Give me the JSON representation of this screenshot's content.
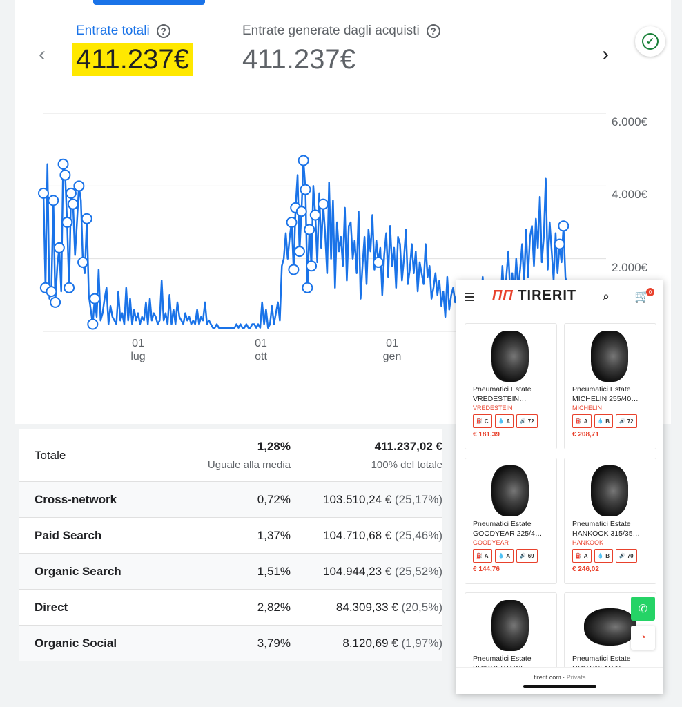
{
  "metrics": {
    "active": {
      "label": "Entrate totali",
      "value": "411.237€"
    },
    "secondary": {
      "label": "Entrate generate dagli acquisti",
      "value": "411.237€"
    }
  },
  "nav": {
    "prev": "‹",
    "next": "›"
  },
  "chart_data": {
    "type": "line",
    "y_ticks": [
      "2.000€",
      "4.000€",
      "6.000€"
    ],
    "x_ticks": [
      {
        "day": "01",
        "month": "lug"
      },
      {
        "day": "01",
        "month": "ott"
      },
      {
        "day": "01",
        "month": "gen"
      }
    ],
    "ylim": [
      0,
      6000
    ],
    "color": "#1a73e8",
    "series": [
      {
        "values": [
          3800,
          1200,
          4600,
          900,
          1100,
          3600,
          800,
          1800,
          2300,
          1100,
          4600,
          4300,
          3000,
          1200,
          3800,
          3500,
          2100,
          3000,
          4000,
          3600,
          1900,
          1600,
          3100,
          1000,
          600,
          200,
          900,
          400,
          1700,
          300,
          500,
          900,
          1200,
          200,
          700,
          400,
          300,
          200,
          1100,
          300,
          500,
          200,
          1200,
          300,
          900,
          200,
          600,
          300,
          500,
          200,
          400,
          300,
          800,
          200,
          900,
          300,
          500,
          400,
          200,
          300,
          1400,
          300,
          500,
          200,
          1000,
          200,
          600,
          200,
          800,
          400,
          300,
          200,
          500,
          300,
          400,
          200,
          300,
          200,
          600,
          200,
          400,
          300,
          800,
          200,
          300,
          200,
          100,
          100,
          200,
          100,
          100,
          100,
          100,
          100,
          100,
          100,
          100,
          100,
          200,
          100,
          200,
          100,
          100,
          200,
          100,
          100,
          200,
          200,
          100,
          200,
          100,
          800,
          200,
          600,
          100,
          200,
          700,
          200,
          500,
          800,
          300,
          1800,
          2000,
          2700,
          2000,
          2600,
          3000,
          1700,
          3400,
          4300,
          2200,
          3300,
          4700,
          3900,
          1200,
          2800,
          1800,
          4000,
          3200,
          1900,
          3800,
          2300,
          3500,
          2700,
          1600,
          4100,
          2000,
          3600,
          1200,
          3000,
          2200,
          2600,
          1800,
          3400,
          1400,
          2900,
          3000,
          2000,
          2500,
          1600,
          3300,
          900,
          1800,
          2600,
          1300,
          2800,
          2200,
          3200,
          1700,
          2500,
          1900,
          2300,
          1000,
          2100,
          2700,
          1500,
          2900,
          1800,
          2300,
          1200,
          2600,
          2400,
          1400,
          2000,
          2800,
          1300,
          1700,
          2400,
          1600,
          2200,
          1100,
          1900,
          1600,
          1300,
          2400,
          1500,
          1800,
          900,
          1200,
          1600,
          1000,
          1400,
          700,
          1100,
          400,
          1500,
          600,
          1000,
          1200,
          800,
          1100,
          900,
          300,
          1200,
          700,
          1000,
          600,
          1300,
          900,
          700,
          1100,
          1200,
          800,
          1500,
          600,
          1000,
          1400,
          700,
          1200,
          900,
          1300,
          1100,
          600,
          1800,
          800,
          1500,
          2200,
          1000,
          1600,
          900,
          2000,
          1200,
          1700,
          2400,
          1300,
          2800,
          1500,
          2600,
          2900,
          1800,
          3100,
          2300,
          3700,
          1900,
          2600,
          4200,
          1700,
          3000,
          2200,
          1400,
          2700,
          1600,
          2400,
          1900,
          2900,
          1500,
          1200
        ]
      }
    ]
  },
  "table": {
    "total": {
      "label": "Totale",
      "rate": "1,28%",
      "rate_sub": "Uguale alla media",
      "revenue": "411.237,02 €",
      "revenue_sub": "100% del totale"
    },
    "rows": [
      {
        "name": "Cross-network",
        "rate": "0,72%",
        "revenue": "103.510,24 €",
        "pct": "(25,17%)"
      },
      {
        "name": "Paid Search",
        "rate": "1,37%",
        "revenue": "104.710,68 €",
        "pct": "(25,46%)"
      },
      {
        "name": "Organic Search",
        "rate": "1,51%",
        "revenue": "104.944,23 €",
        "pct": "(25,52%)"
      },
      {
        "name": "Direct",
        "rate": "2,82%",
        "revenue": "84.309,33 €",
        "pct": "(20,5%)"
      },
      {
        "name": "Organic Social",
        "rate": "3,79%",
        "revenue": "8.120,69 €",
        "pct": "(1,97%)"
      }
    ]
  },
  "phone": {
    "logo_mark": "ПП",
    "logo_text": "TIRERIT",
    "cart_count": "0",
    "products": [
      {
        "title": "Pneumatici Estate VREDESTEIN…",
        "brand": "VREDESTEIN",
        "fuel": "C",
        "wet": "A",
        "noise": "72",
        "price": "€ 181,39"
      },
      {
        "title": "Pneumatici Estate MICHELIN 255/40…",
        "brand": "MICHELIN",
        "fuel": "A",
        "wet": "B",
        "noise": "72",
        "price": "€ 208,71"
      },
      {
        "title": "Pneumatici Estate GOODYEAR 225/4…",
        "brand": "GOODYEAR",
        "fuel": "A",
        "wet": "A",
        "noise": "69",
        "price": "€ 144,76"
      },
      {
        "title": "Pneumatici Estate HANKOOK 315/35…",
        "brand": "HANKOOK",
        "fuel": "A",
        "wet": "B",
        "noise": "70",
        "price": "€ 246,02"
      },
      {
        "title": "Pneumatici Estate BRIDGESTONE",
        "brand": "",
        "fuel": "",
        "wet": "",
        "noise": "",
        "price": ""
      },
      {
        "title": "Pneumatici Estate CONTINENTAL",
        "brand": "",
        "fuel": "",
        "wet": "",
        "noise": "",
        "price": ""
      }
    ],
    "footer_url": "tirerit.com",
    "footer_mode": "Privata"
  }
}
